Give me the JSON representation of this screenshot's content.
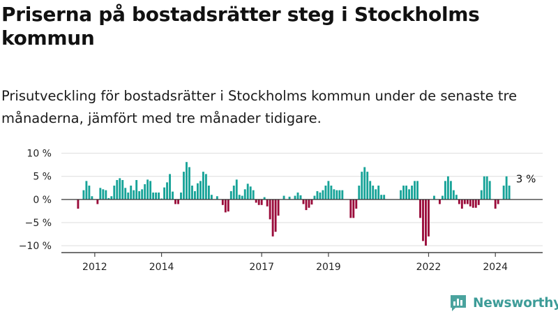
{
  "chart_data": {
    "type": "bar",
    "title": "Priserna på bostadsrätter steg i Stockholms kommun",
    "subtitle": "Prisutveckling för bostadsrätter i Stockholms kommun under de senaste tre månaderna, jämfört med tre månader tidigare.",
    "xlabel": "",
    "ylabel": "",
    "ylim": [
      -11.5,
      11
    ],
    "xlim": [
      "2011-01",
      "2025-06"
    ],
    "y_ticks": [
      {
        "value": 10,
        "label": "10 %"
      },
      {
        "value": 5,
        "label": "5 %"
      },
      {
        "value": 0,
        "label": "0 %"
      },
      {
        "value": -5,
        "label": "−5 %"
      },
      {
        "value": -10,
        "label": "−10 %"
      }
    ],
    "x_ticks": [
      {
        "date": "2012-01",
        "label": "2012"
      },
      {
        "date": "2014-01",
        "label": "2014"
      },
      {
        "date": "2017-01",
        "label": "2017"
      },
      {
        "date": "2019-01",
        "label": "2019"
      },
      {
        "date": "2022-01",
        "label": "2022"
      },
      {
        "date": "2024-01",
        "label": "2024"
      }
    ],
    "grid": true,
    "legend": "none",
    "colors": {
      "positive": "#17a398",
      "negative": "#9a0b3a",
      "grid": "#dddddd",
      "axis": "#444444"
    },
    "annotation": {
      "text": "3 %",
      "date": "2024-12"
    },
    "series": [
      {
        "values": [
          {
            "date": "2011-07",
            "value": -2
          },
          {
            "date": "2011-09",
            "value": 2
          },
          {
            "date": "2011-10",
            "value": 4
          },
          {
            "date": "2011-11",
            "value": 3
          },
          {
            "date": "2011-12",
            "value": 0.7
          },
          {
            "date": "2012-02",
            "value": -1
          },
          {
            "date": "2012-03",
            "value": 2.5
          },
          {
            "date": "2012-04",
            "value": 2.2
          },
          {
            "date": "2012-05",
            "value": 2
          },
          {
            "date": "2012-06",
            "value": 0.3
          },
          {
            "date": "2012-07",
            "value": 0.7
          },
          {
            "date": "2012-08",
            "value": 3
          },
          {
            "date": "2012-09",
            "value": 4.2
          },
          {
            "date": "2012-10",
            "value": 4.6
          },
          {
            "date": "2012-11",
            "value": 4.2
          },
          {
            "date": "2012-12",
            "value": 2.5
          },
          {
            "date": "2013-01",
            "value": 1.5
          },
          {
            "date": "2013-02",
            "value": 3
          },
          {
            "date": "2013-03",
            "value": 2
          },
          {
            "date": "2013-04",
            "value": 4.2
          },
          {
            "date": "2013-05",
            "value": 1.8
          },
          {
            "date": "2013-06",
            "value": 2.2
          },
          {
            "date": "2013-07",
            "value": 3.3
          },
          {
            "date": "2013-08",
            "value": 4.3
          },
          {
            "date": "2013-09",
            "value": 4
          },
          {
            "date": "2013-10",
            "value": 1.5
          },
          {
            "date": "2013-11",
            "value": 1.5
          },
          {
            "date": "2013-12",
            "value": 1.5
          },
          {
            "date": "2014-01",
            "value": 0.2
          },
          {
            "date": "2014-02",
            "value": 2.6
          },
          {
            "date": "2014-03",
            "value": 3.7
          },
          {
            "date": "2014-04",
            "value": 5.5
          },
          {
            "date": "2014-05",
            "value": 1.7
          },
          {
            "date": "2014-06",
            "value": -1
          },
          {
            "date": "2014-07",
            "value": -1
          },
          {
            "date": "2014-08",
            "value": 1.5
          },
          {
            "date": "2014-09",
            "value": 6
          },
          {
            "date": "2014-10",
            "value": 8.1
          },
          {
            "date": "2014-11",
            "value": 7
          },
          {
            "date": "2014-12",
            "value": 3
          },
          {
            "date": "2015-01",
            "value": 1.8
          },
          {
            "date": "2015-02",
            "value": 3.5
          },
          {
            "date": "2015-03",
            "value": 4
          },
          {
            "date": "2015-04",
            "value": 6
          },
          {
            "date": "2015-05",
            "value": 5.5
          },
          {
            "date": "2015-06",
            "value": 3
          },
          {
            "date": "2015-07",
            "value": 1
          },
          {
            "date": "2015-09",
            "value": 0.7
          },
          {
            "date": "2015-11",
            "value": -1.2
          },
          {
            "date": "2015-12",
            "value": -2.8
          },
          {
            "date": "2016-01",
            "value": -2.6
          },
          {
            "date": "2016-02",
            "value": 1.8
          },
          {
            "date": "2016-03",
            "value": 3
          },
          {
            "date": "2016-04",
            "value": 4.3
          },
          {
            "date": "2016-05",
            "value": 1
          },
          {
            "date": "2016-06",
            "value": 0.8
          },
          {
            "date": "2016-07",
            "value": 2.2
          },
          {
            "date": "2016-08",
            "value": 3.4
          },
          {
            "date": "2016-09",
            "value": 2.8
          },
          {
            "date": "2016-10",
            "value": 2
          },
          {
            "date": "2016-11",
            "value": -0.7
          },
          {
            "date": "2016-12",
            "value": -1.2
          },
          {
            "date": "2017-01",
            "value": -1.2
          },
          {
            "date": "2017-02",
            "value": 0.5
          },
          {
            "date": "2017-03",
            "value": -1.5
          },
          {
            "date": "2017-04",
            "value": -4.3
          },
          {
            "date": "2017-05",
            "value": -8
          },
          {
            "date": "2017-06",
            "value": -7
          },
          {
            "date": "2017-07",
            "value": -3.5
          },
          {
            "date": "2017-09",
            "value": 0.8
          },
          {
            "date": "2017-11",
            "value": 0.6
          },
          {
            "date": "2018-01",
            "value": 0.8
          },
          {
            "date": "2018-02",
            "value": 1.5
          },
          {
            "date": "2018-03",
            "value": 0.9
          },
          {
            "date": "2018-04",
            "value": -1
          },
          {
            "date": "2018-05",
            "value": -2.3
          },
          {
            "date": "2018-06",
            "value": -1.8
          },
          {
            "date": "2018-07",
            "value": -1.1
          },
          {
            "date": "2018-08",
            "value": 0.8
          },
          {
            "date": "2018-09",
            "value": 1.8
          },
          {
            "date": "2018-10",
            "value": 1.5
          },
          {
            "date": "2018-11",
            "value": 2
          },
          {
            "date": "2018-12",
            "value": 3
          },
          {
            "date": "2019-01",
            "value": 4
          },
          {
            "date": "2019-02",
            "value": 3
          },
          {
            "date": "2019-03",
            "value": 2.2
          },
          {
            "date": "2019-04",
            "value": 2
          },
          {
            "date": "2019-05",
            "value": 2
          },
          {
            "date": "2019-06",
            "value": 2
          },
          {
            "date": "2019-09",
            "value": -4
          },
          {
            "date": "2019-10",
            "value": -4
          },
          {
            "date": "2019-11",
            "value": -2
          },
          {
            "date": "2019-12",
            "value": 3
          },
          {
            "date": "2020-01",
            "value": 6
          },
          {
            "date": "2020-02",
            "value": 7
          },
          {
            "date": "2020-03",
            "value": 6
          },
          {
            "date": "2020-04",
            "value": 4
          },
          {
            "date": "2020-05",
            "value": 3
          },
          {
            "date": "2020-06",
            "value": 2.2
          },
          {
            "date": "2020-07",
            "value": 3
          },
          {
            "date": "2020-08",
            "value": 1
          },
          {
            "date": "2020-09",
            "value": 1
          },
          {
            "date": "2021-03",
            "value": 2
          },
          {
            "date": "2021-04",
            "value": 3
          },
          {
            "date": "2021-05",
            "value": 3
          },
          {
            "date": "2021-06",
            "value": 2.2
          },
          {
            "date": "2021-07",
            "value": 3
          },
          {
            "date": "2021-08",
            "value": 4
          },
          {
            "date": "2021-09",
            "value": 4
          },
          {
            "date": "2021-10",
            "value": -4
          },
          {
            "date": "2021-11",
            "value": -9
          },
          {
            "date": "2021-12",
            "value": -10
          },
          {
            "date": "2022-01",
            "value": -8
          },
          {
            "date": "2022-03",
            "value": 0.8
          },
          {
            "date": "2022-05",
            "value": -1
          },
          {
            "date": "2022-06",
            "value": 0.8
          },
          {
            "date": "2022-07",
            "value": 4
          },
          {
            "date": "2022-08",
            "value": 5
          },
          {
            "date": "2022-09",
            "value": 4
          },
          {
            "date": "2022-10",
            "value": 2
          },
          {
            "date": "2022-11",
            "value": 1
          },
          {
            "date": "2022-12",
            "value": -1
          },
          {
            "date": "2023-01",
            "value": -2
          },
          {
            "date": "2023-02",
            "value": -1
          },
          {
            "date": "2023-03",
            "value": -1
          },
          {
            "date": "2023-04",
            "value": -1.5
          },
          {
            "date": "2023-05",
            "value": -1.8
          },
          {
            "date": "2023-06",
            "value": -1.8
          },
          {
            "date": "2023-07",
            "value": -1.2
          },
          {
            "date": "2023-08",
            "value": 2
          },
          {
            "date": "2023-09",
            "value": 5
          },
          {
            "date": "2023-10",
            "value": 5
          },
          {
            "date": "2023-11",
            "value": 4
          },
          {
            "date": "2024-01",
            "value": -2
          },
          {
            "date": "2024-02",
            "value": -1
          },
          {
            "date": "2024-04",
            "value": 3
          },
          {
            "date": "2024-05",
            "value": 5
          },
          {
            "date": "2024-06",
            "value": 3
          }
        ]
      }
    ]
  },
  "brand": {
    "name": "Newsworthy",
    "icon": "bar-chart-logo-icon"
  }
}
